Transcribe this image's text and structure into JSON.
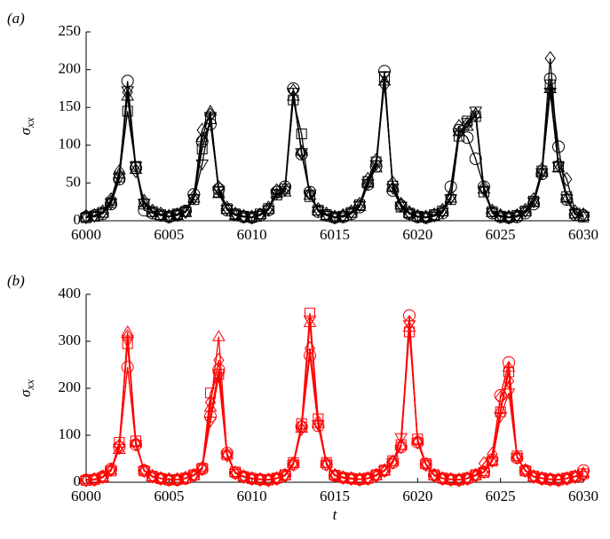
{
  "chart_data": [
    {
      "type": "line",
      "panel_label": "(a)",
      "ylabel": "σ",
      "ylabel_subscript": "xx",
      "color": "#000000",
      "x": [
        6000,
        6000.5,
        6001,
        6001.5,
        6002,
        6002.5,
        6003,
        6003.5,
        6004,
        6004.5,
        6005,
        6005.5,
        6006,
        6006.5,
        6007,
        6007.5,
        6008,
        6008.5,
        6009,
        6009.5,
        6010,
        6010.5,
        6011,
        6011.5,
        6012,
        6012.5,
        6013,
        6013.5,
        6014,
        6014.5,
        6015,
        6015.5,
        6016,
        6016.5,
        6017,
        6017.5,
        6018,
        6018.5,
        6019,
        6019.5,
        6020,
        6020.5,
        6021,
        6021.5,
        6022,
        6022.5,
        6023,
        6023.5,
        6024,
        6024.5,
        6025,
        6025.5,
        6026,
        6026.5,
        6027,
        6027.5,
        6028,
        6028.5,
        6029,
        6029.5,
        6030
      ],
      "xlim": [
        6000,
        6030
      ],
      "xticks": [
        6000,
        6005,
        6010,
        6015,
        6020,
        6025,
        6030
      ],
      "ylim": [
        0,
        250
      ],
      "yticks": [
        0,
        50,
        100,
        150,
        200,
        250
      ],
      "series": [
        {
          "marker": "circle",
          "values": [
            5,
            7,
            9,
            22,
            55,
            185,
            70,
            14,
            10,
            7,
            5,
            8,
            13,
            35,
            105,
            128,
            42,
            14,
            8,
            5,
            4,
            7,
            14,
            38,
            45,
            175,
            88,
            38,
            12,
            7,
            4,
            5,
            9,
            18,
            48,
            72,
            198,
            40,
            20,
            9,
            5,
            4,
            7,
            10,
            45,
            120,
            110,
            82,
            45,
            10,
            5,
            4,
            5,
            10,
            22,
            62,
            188,
            98,
            28,
            8,
            7
          ]
        },
        {
          "marker": "square",
          "values": [
            4,
            6,
            11,
            24,
            58,
            145,
            72,
            22,
            12,
            8,
            6,
            9,
            12,
            28,
            95,
            135,
            38,
            16,
            9,
            6,
            5,
            9,
            16,
            34,
            42,
            160,
            115,
            32,
            14,
            8,
            5,
            6,
            11,
            21,
            52,
            78,
            190,
            46,
            18,
            10,
            6,
            5,
            8,
            13,
            28,
            112,
            132,
            138,
            38,
            12,
            6,
            5,
            7,
            13,
            26,
            66,
            180,
            72,
            32,
            10,
            5
          ]
        },
        {
          "marker": "triangle-up",
          "values": [
            5,
            5,
            10,
            26,
            62,
            165,
            68,
            24,
            11,
            7,
            5,
            7,
            11,
            30,
            110,
            145,
            36,
            15,
            7,
            5,
            4,
            8,
            15,
            36,
            38,
            165,
            92,
            34,
            13,
            7,
            4,
            6,
            10,
            19,
            50,
            70,
            185,
            44,
            21,
            10,
            5,
            4,
            6,
            12,
            30,
            118,
            125,
            142,
            42,
            11,
            6,
            4,
            6,
            12,
            24,
            64,
            175,
            70,
            30,
            9,
            6
          ]
        },
        {
          "marker": "diamond",
          "values": [
            6,
            7,
            12,
            28,
            65,
            170,
            66,
            26,
            13,
            9,
            6,
            8,
            12,
            32,
            120,
            140,
            44,
            17,
            9,
            6,
            5,
            8,
            17,
            40,
            42,
            172,
            90,
            36,
            15,
            9,
            5,
            7,
            12,
            22,
            55,
            80,
            180,
            50,
            22,
            11,
            6,
            5,
            8,
            14,
            32,
            125,
            128,
            140,
            44,
            13,
            7,
            5,
            7,
            14,
            28,
            68,
            215,
            74,
            55,
            12,
            8
          ]
        },
        {
          "marker": "triangle-down",
          "values": [
            4,
            6,
            10,
            23,
            57,
            172,
            72,
            23,
            11,
            7,
            5,
            8,
            12,
            29,
            75,
            138,
            40,
            15,
            8,
            5,
            4,
            7,
            14,
            36,
            40,
            170,
            90,
            35,
            13,
            7,
            4,
            5,
            10,
            20,
            49,
            74,
            192,
            43,
            19,
            9,
            5,
            4,
            6,
            11,
            29,
            116,
            130,
            145,
            40,
            11,
            5,
            4,
            6,
            12,
            25,
            63,
            170,
            72,
            29,
            9,
            6
          ]
        }
      ]
    },
    {
      "type": "line",
      "panel_label": "(b)",
      "ylabel": "σ",
      "ylabel_subscript": "xx",
      "xlabel": "t",
      "color": "#ff0000",
      "x": [
        6000,
        6000.5,
        6001,
        6001.5,
        6002,
        6002.5,
        6003,
        6003.5,
        6004,
        6004.5,
        6005,
        6005.5,
        6006,
        6006.5,
        6007,
        6007.5,
        6008,
        6008.5,
        6009,
        6009.5,
        6010,
        6010.5,
        6011,
        6011.5,
        6012,
        6012.5,
        6013,
        6013.5,
        6014,
        6014.5,
        6015,
        6015.5,
        6016,
        6016.5,
        6017,
        6017.5,
        6018,
        6018.5,
        6019,
        6019.5,
        6020,
        6020.5,
        6021,
        6021.5,
        6022,
        6022.5,
        6023,
        6023.5,
        6024,
        6024.5,
        6025,
        6025.5,
        6026,
        6026.5,
        6027,
        6027.5,
        6028,
        6028.5,
        6029,
        6029.5,
        6030
      ],
      "xlim": [
        6000,
        6030
      ],
      "xticks": [
        6000,
        6005,
        6010,
        6015,
        6020,
        6025,
        6030
      ],
      "ylim": [
        0,
        400
      ],
      "yticks": [
        0,
        100,
        200,
        300,
        400
      ],
      "series": [
        {
          "marker": "circle",
          "values": [
            5,
            6,
            12,
            28,
            75,
            245,
            80,
            25,
            12,
            8,
            5,
            5,
            8,
            15,
            28,
            140,
            240,
            62,
            20,
            12,
            8,
            6,
            5,
            8,
            15,
            38,
            118,
            270,
            120,
            38,
            14,
            10,
            8,
            6,
            8,
            15,
            25,
            42,
            75,
            355,
            85,
            38,
            15,
            8,
            6,
            5,
            8,
            15,
            22,
            48,
            185,
            255,
            52,
            25,
            12,
            8,
            6,
            5,
            8,
            12,
            25
          ]
        },
        {
          "marker": "square",
          "values": [
            4,
            6,
            10,
            24,
            85,
            295,
            88,
            24,
            13,
            8,
            5,
            6,
            9,
            16,
            30,
            190,
            230,
            58,
            22,
            12,
            8,
            6,
            5,
            9,
            16,
            42,
            125,
            360,
            135,
            42,
            15,
            10,
            8,
            6,
            9,
            16,
            26,
            46,
            80,
            320,
            92,
            40,
            16,
            9,
            6,
            5,
            9,
            16,
            21,
            45,
            150,
            235,
            56,
            24,
            13,
            9,
            6,
            5,
            9,
            13,
            18
          ]
        },
        {
          "marker": "triangle-up",
          "values": [
            6,
            7,
            11,
            26,
            70,
            320,
            84,
            26,
            12,
            9,
            6,
            5,
            8,
            14,
            32,
            160,
            310,
            60,
            21,
            13,
            9,
            7,
            6,
            8,
            14,
            40,
            115,
            340,
            125,
            40,
            16,
            11,
            9,
            7,
            8,
            14,
            24,
            44,
            78,
            330,
            88,
            39,
            14,
            8,
            7,
            6,
            8,
            14,
            23,
            46,
            155,
            245,
            54,
            26,
            12,
            9,
            7,
            6,
            8,
            12,
            20
          ]
        },
        {
          "marker": "diamond",
          "values": [
            5,
            6,
            12,
            27,
            78,
            310,
            82,
            25,
            13,
            8,
            6,
            6,
            9,
            15,
            29,
            170,
            260,
            58,
            20,
            12,
            8,
            6,
            5,
            8,
            15,
            39,
            120,
            285,
            128,
            39,
            15,
            10,
            8,
            6,
            8,
            15,
            25,
            43,
            76,
            340,
            86,
            38,
            15,
            8,
            6,
            5,
            8,
            15,
            40,
            60,
            180,
            215,
            53,
            25,
            12,
            8,
            6,
            5,
            8,
            12,
            15
          ]
        },
        {
          "marker": "triangle-down",
          "values": [
            4,
            5,
            10,
            25,
            72,
            300,
            80,
            24,
            11,
            8,
            5,
            5,
            8,
            14,
            28,
            130,
            225,
            56,
            19,
            11,
            7,
            6,
            5,
            8,
            14,
            37,
            112,
            345,
            122,
            37,
            14,
            9,
            7,
            6,
            8,
            14,
            24,
            41,
            95,
            335,
            84,
            37,
            14,
            8,
            6,
            5,
            8,
            14,
            21,
            44,
            140,
            190,
            52,
            24,
            11,
            8,
            6,
            5,
            8,
            12,
            14
          ]
        }
      ]
    }
  ]
}
